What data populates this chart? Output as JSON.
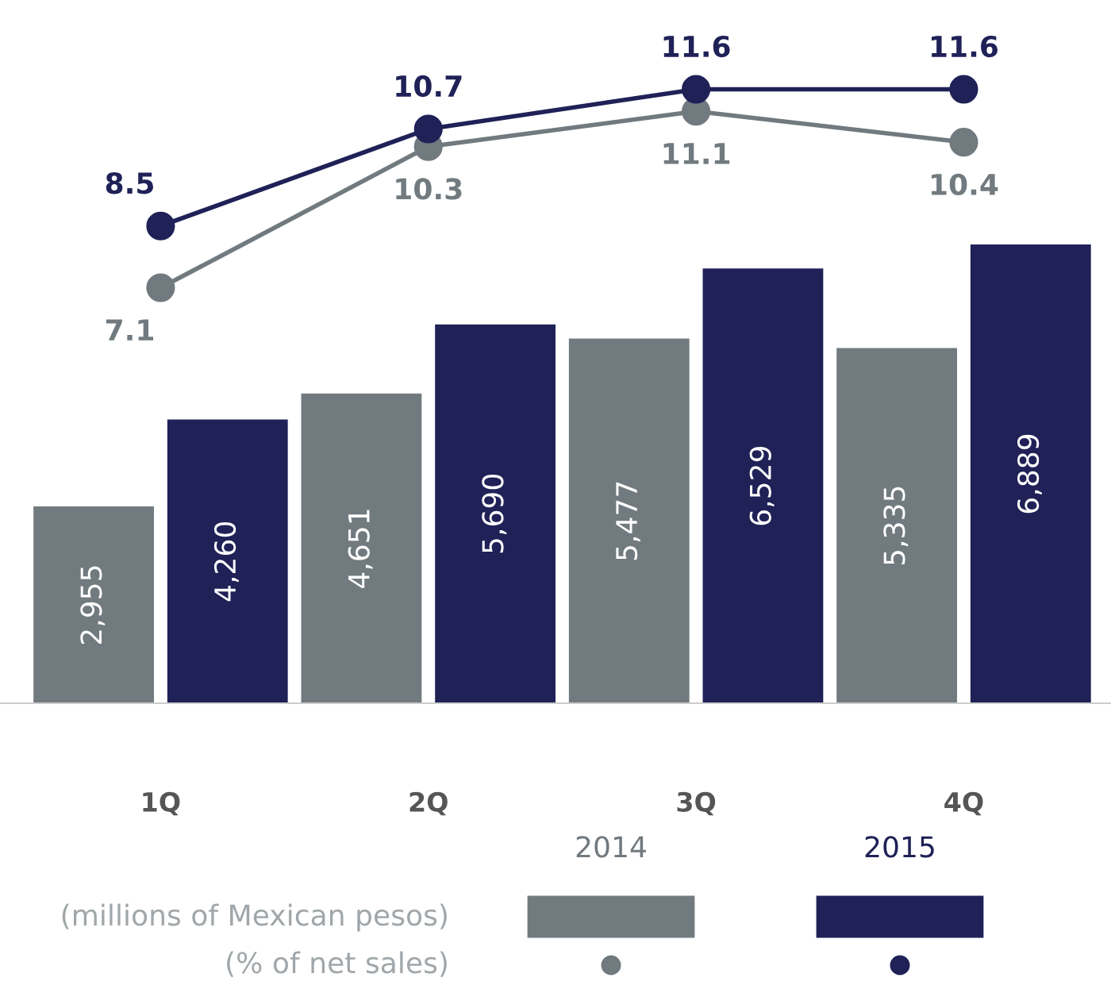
{
  "chart_data": [
    {
      "type": "line",
      "categories": [
        null,
        null,
        null,
        null
      ],
      "tick_labels": false,
      "marker": "circle",
      "series": [
        {
          "color": "#717a7f",
          "values": [
            7.1,
            10.3,
            11.1,
            10.4
          ],
          "value_labels": [
            "7.1",
            "10.3",
            "11.1",
            "10.4"
          ]
        },
        {
          "color": "#1f2157",
          "values": [
            8.5,
            10.7,
            11.6,
            11.6
          ],
          "value_labels": [
            "8.5",
            "10.7",
            "11.6",
            "11.6"
          ]
        }
      ],
      "annotations": [
        "(% of net sales)"
      ]
    },
    {
      "type": "bar",
      "categories": [
        "1Q",
        "2Q",
        "3Q",
        "4Q"
      ],
      "tick_labels": "x",
      "legend": "bottom",
      "series": [
        {
          "name": "2014",
          "color": "#717a7f",
          "values": [
            2955,
            4651,
            5477,
            5335
          ],
          "value_labels": [
            "2,955",
            "4,651",
            "5,477",
            "5,335"
          ]
        },
        {
          "name": "2015",
          "color": "#1f2157",
          "values": [
            4260,
            5690,
            6529,
            6889
          ],
          "value_labels": [
            "4,260",
            "5,690",
            "6,529",
            "6,889"
          ]
        }
      ],
      "annotations": [
        "(millions of Mexican pesos)"
      ]
    }
  ]
}
